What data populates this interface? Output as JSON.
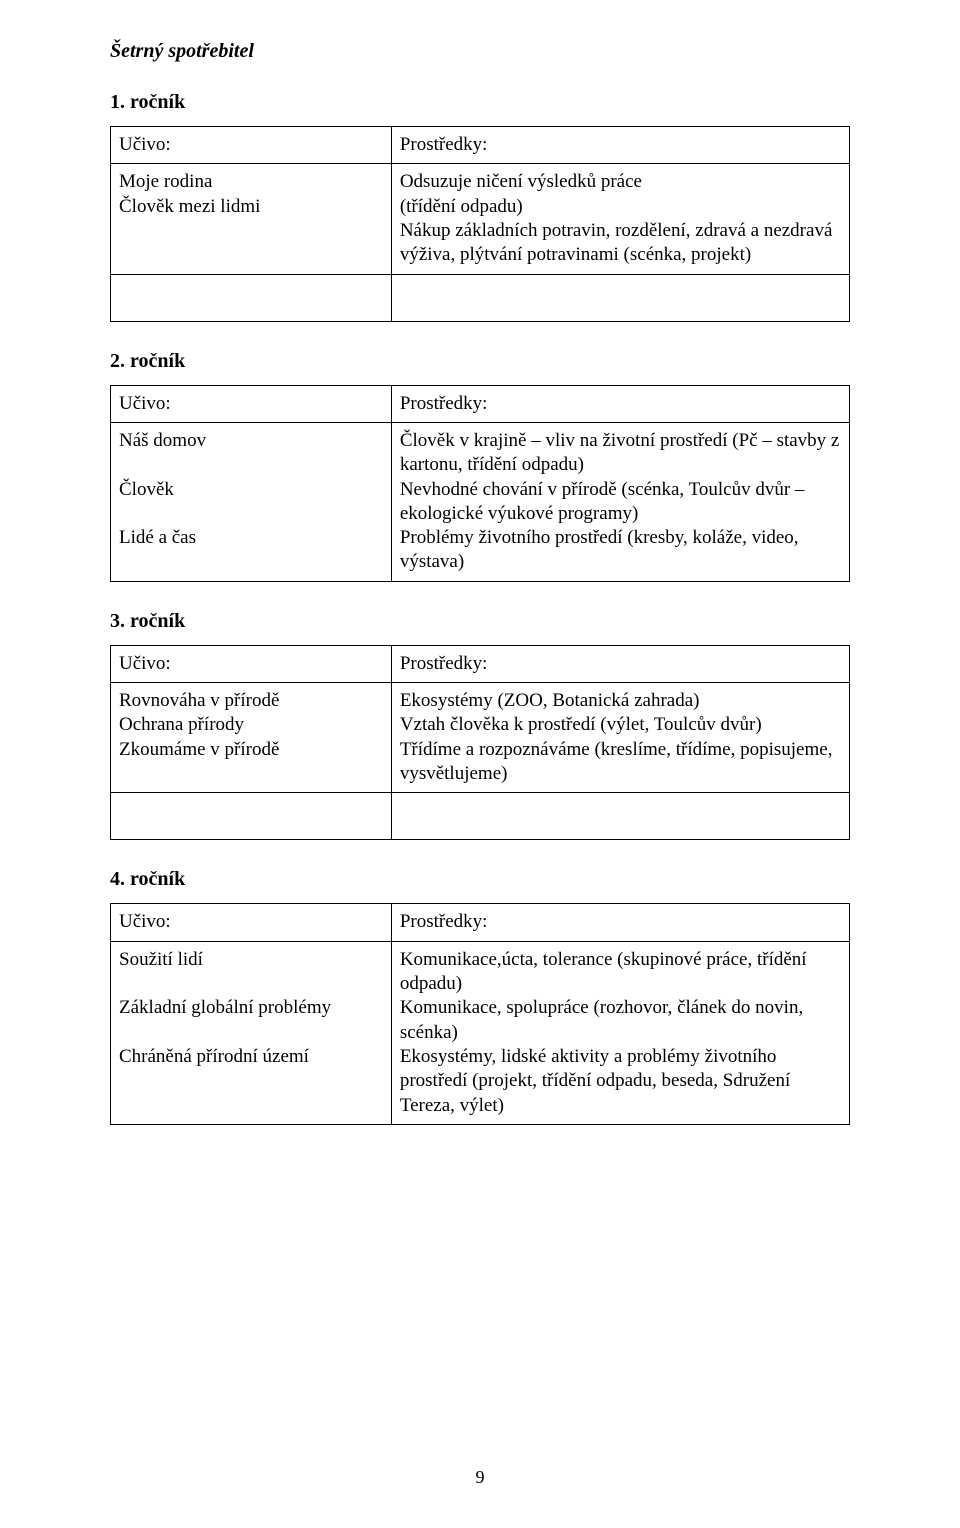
{
  "title": "Šetrný spotřebitel",
  "pageNumber": "9",
  "headers": {
    "left": "Učivo:",
    "right": "Prostředky:"
  },
  "grades": {
    "g1": {
      "heading": "1. ročník",
      "left": "Moje rodina\nČlověk mezi lidmi",
      "right": "Odsuzuje ničení výsledků práce\n(třídění odpadu)\nNákup základních potravin, rozdělení, zdravá a nezdravá výživa, plýtvání potravinami (scénka, projekt)"
    },
    "g2": {
      "heading": "2. ročník",
      "left": "Náš domov\n\nČlověk\n\nLidé a čas",
      "right": "Člověk v krajině – vliv na životní prostředí (Pč – stavby z kartonu, třídění odpadu)\nNevhodné chování v přírodě (scénka, Toulcův dvůr – ekologické výukové programy)\nProblémy životního prostředí (kresby, koláže, video, výstava)"
    },
    "g3": {
      "heading": "3. ročník",
      "left": "Rovnováha v přírodě\nOchrana přírody\nZkoumáme v přírodě",
      "right": "Ekosystémy (ZOO, Botanická zahrada)\nVztah člověka k prostředí (výlet, Toulcův dvůr)\nTřídíme a rozpoznáváme (kreslíme, třídíme, popisujeme, vysvětlujeme)"
    },
    "g4": {
      "heading": "4. ročník",
      "left": "Soužití lidí\n\nZákladní globální problémy\n\nChráněná přírodní území",
      "right": "Komunikace,úcta, tolerance (skupinové práce, třídění odpadu)\nKomunikace, spolupráce (rozhovor, článek do novin, scénka)\nEkosystémy, lidské aktivity a problémy životního prostředí (projekt, třídění odpadu, beseda, Sdružení Tereza, výlet)"
    }
  }
}
